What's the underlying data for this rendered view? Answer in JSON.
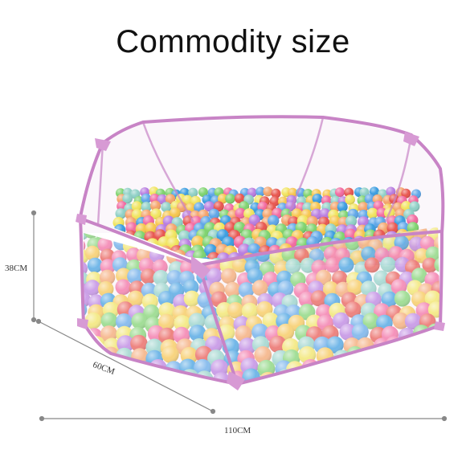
{
  "title": "Commodity size",
  "dimensions": {
    "height": "38CM",
    "depth": "60CM",
    "width": "110CM"
  },
  "colors": {
    "frame": "#c884c6",
    "mesh_edge": "#d9a8d6",
    "ball_palette": [
      "#f4a36a",
      "#7ed36f",
      "#5ea6e8",
      "#f26aa0",
      "#f1e45e",
      "#8fd0c6",
      "#e8564f",
      "#b87de0",
      "#f6c54d",
      "#3b9de0"
    ]
  }
}
